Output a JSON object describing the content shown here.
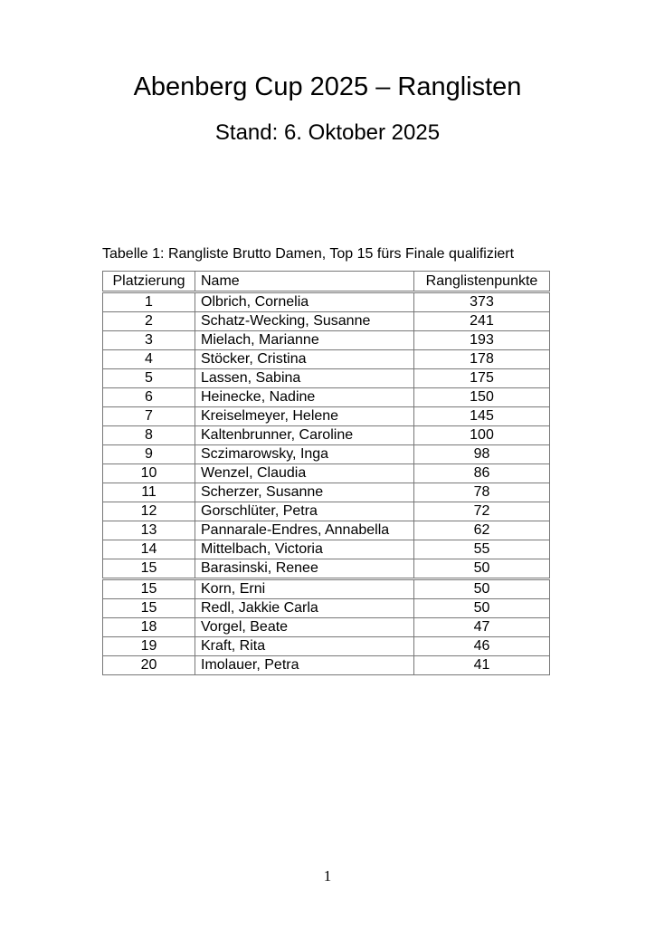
{
  "title": "Abenberg Cup 2025 – Ranglisten",
  "subtitle": "Stand: 6. Oktober 2025",
  "table": {
    "caption": "Tabelle 1: Rangliste Brutto Damen, Top 15 fürs Finale qualifiziert",
    "headers": [
      "Platzierung",
      "Name",
      "Ranglistenpunkte"
    ],
    "rows": [
      [
        "1",
        "Olbrich, Cornelia",
        "373"
      ],
      [
        "2",
        "Schatz-Wecking, Susanne",
        "241"
      ],
      [
        "3",
        "Mielach, Marianne",
        "193"
      ],
      [
        "4",
        "Stöcker, Cristina",
        "178"
      ],
      [
        "5",
        "Lassen, Sabina",
        "175"
      ],
      [
        "6",
        "Heinecke, Nadine",
        "150"
      ],
      [
        "7",
        "Kreiselmeyer, Helene",
        "145"
      ],
      [
        "8",
        "Kaltenbrunner, Caroline",
        "100"
      ],
      [
        "9",
        "Sczimarowsky, Inga",
        "98"
      ],
      [
        "10",
        "Wenzel, Claudia",
        "86"
      ],
      [
        "11",
        "Scherzer, Susanne",
        "78"
      ],
      [
        "12",
        "Gorschlüter, Petra",
        "72"
      ],
      [
        "13",
        "Pannarale-Endres, Annabella",
        "62"
      ],
      [
        "14",
        "Mittelbach, Victoria",
        "55"
      ],
      [
        "15",
        "Barasinski, Renee",
        "50"
      ],
      [
        "15",
        "Korn, Erni",
        "50"
      ],
      [
        "15",
        "Redl, Jakkie Carla",
        "50"
      ],
      [
        "18",
        "Vorgel, Beate",
        "47"
      ],
      [
        "19",
        "Kraft, Rita",
        "46"
      ],
      [
        "20",
        "Imolauer, Petra",
        "41"
      ]
    ]
  },
  "page_number": "1"
}
